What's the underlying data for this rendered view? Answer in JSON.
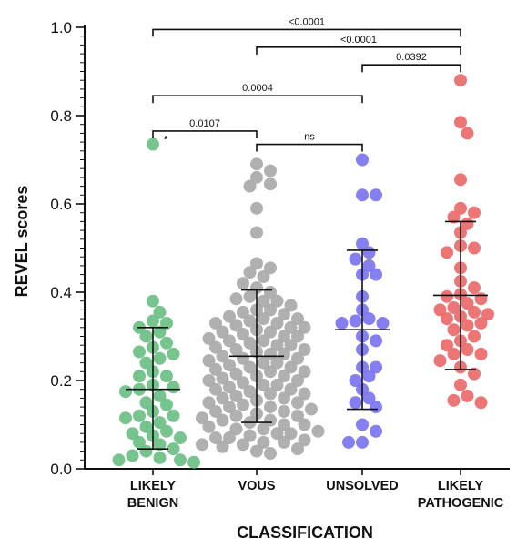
{
  "chart_data": {
    "type": "scatter",
    "ylabel": "REVEL scores",
    "xlabel": "CLASSIFICATION",
    "ylim": [
      0.0,
      1.0
    ],
    "yticks": [
      "0.0",
      "0.2",
      "0.4",
      "0.6",
      "0.8",
      "1.0"
    ],
    "categories": [
      {
        "line1": "LIKELY",
        "line2": "BENIGN"
      },
      {
        "line1": "VOUS",
        "line2": ""
      },
      {
        "line1": "UNSOLVED",
        "line2": ""
      },
      {
        "line1": "LIKELY",
        "line2": "PATHOGENIC"
      }
    ],
    "colors": [
      "#6dbf85",
      "#a9a9a9",
      "#7b74ee",
      "#ea6a6a"
    ],
    "summary": [
      {
        "mean": 0.18,
        "sd_low": 0.045,
        "sd_high": 0.32
      },
      {
        "mean": 0.255,
        "sd_low": 0.105,
        "sd_high": 0.405
      },
      {
        "mean": 0.315,
        "sd_low": 0.135,
        "sd_high": 0.495
      },
      {
        "mean": 0.393,
        "sd_low": 0.225,
        "sd_high": 0.56
      }
    ],
    "series": [
      {
        "values": [
          0.735,
          0.38,
          0.355,
          0.335,
          0.33,
          0.32,
          0.31,
          0.3,
          0.285,
          0.275,
          0.26,
          0.25,
          0.24,
          0.22,
          0.21,
          0.19,
          0.185,
          0.18,
          0.175,
          0.165,
          0.15,
          0.145,
          0.13,
          0.12,
          0.115,
          0.105,
          0.095,
          0.085,
          0.075,
          0.07,
          0.06,
          0.055,
          0.045,
          0.04,
          0.03,
          0.025,
          0.02,
          0.02,
          0.015,
          0.21,
          0.265,
          0.08,
          0.12
        ]
      },
      {
        "values": [
          0.69,
          0.675,
          0.66,
          0.645,
          0.64,
          0.59,
          0.535,
          0.465,
          0.455,
          0.445,
          0.435,
          0.42,
          0.41,
          0.4,
          0.39,
          0.385,
          0.38,
          0.37,
          0.36,
          0.355,
          0.35,
          0.345,
          0.34,
          0.335,
          0.33,
          0.325,
          0.32,
          0.315,
          0.31,
          0.305,
          0.3,
          0.295,
          0.29,
          0.285,
          0.28,
          0.275,
          0.27,
          0.265,
          0.26,
          0.255,
          0.25,
          0.245,
          0.24,
          0.235,
          0.23,
          0.225,
          0.22,
          0.215,
          0.21,
          0.205,
          0.2,
          0.195,
          0.19,
          0.185,
          0.18,
          0.175,
          0.17,
          0.165,
          0.16,
          0.155,
          0.15,
          0.145,
          0.14,
          0.135,
          0.13,
          0.125,
          0.12,
          0.115,
          0.11,
          0.105,
          0.1,
          0.095,
          0.09,
          0.085,
          0.08,
          0.075,
          0.07,
          0.065,
          0.06,
          0.055,
          0.05,
          0.045,
          0.04,
          0.035,
          0.33,
          0.31,
          0.29,
          0.27,
          0.25,
          0.23,
          0.21,
          0.19,
          0.17,
          0.15,
          0.13,
          0.11,
          0.09,
          0.07,
          0.055,
          0.38,
          0.36,
          0.34,
          0.32,
          0.3,
          0.28,
          0.26,
          0.24,
          0.22,
          0.2,
          0.18,
          0.16,
          0.14,
          0.12,
          0.1,
          0.08,
          0.06
        ]
      },
      {
        "values": [
          0.7,
          0.62,
          0.62,
          0.51,
          0.49,
          0.475,
          0.46,
          0.44,
          0.44,
          0.39,
          0.36,
          0.34,
          0.335,
          0.33,
          0.33,
          0.3,
          0.29,
          0.27,
          0.23,
          0.23,
          0.21,
          0.2,
          0.18,
          0.16,
          0.15,
          0.14,
          0.1,
          0.085,
          0.06,
          0.06
        ]
      },
      {
        "values": [
          0.88,
          0.785,
          0.76,
          0.655,
          0.59,
          0.58,
          0.57,
          0.555,
          0.535,
          0.505,
          0.5,
          0.49,
          0.455,
          0.425,
          0.41,
          0.395,
          0.39,
          0.385,
          0.375,
          0.365,
          0.36,
          0.355,
          0.35,
          0.345,
          0.34,
          0.33,
          0.325,
          0.315,
          0.3,
          0.29,
          0.28,
          0.27,
          0.26,
          0.26,
          0.245,
          0.23,
          0.215,
          0.19,
          0.165,
          0.155,
          0.15
        ]
      }
    ],
    "annotations": {
      "star": "*",
      "brackets": [
        {
          "from": 0,
          "to": 3,
          "y": 0.995,
          "label": "<0.0001"
        },
        {
          "from": 1,
          "to": 3,
          "y": 0.955,
          "label": "<0.0001"
        },
        {
          "from": 2,
          "to": 3,
          "y": 0.915,
          "label": "0.0392"
        },
        {
          "from": 0,
          "to": 2,
          "y": 0.845,
          "label": "0.0004"
        },
        {
          "from": 0,
          "to": 1,
          "y": 0.765,
          "label": "0.0107"
        },
        {
          "from": 1,
          "to": 2,
          "y": 0.735,
          "label": "ns"
        }
      ]
    }
  }
}
